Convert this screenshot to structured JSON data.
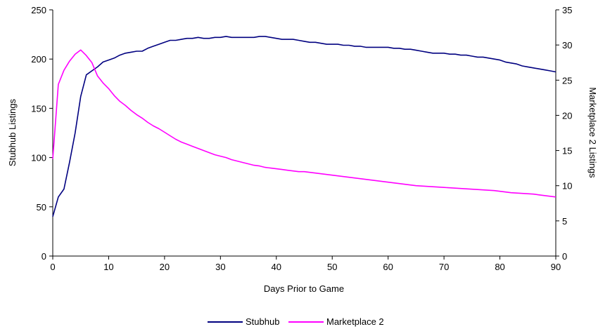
{
  "colors": {
    "stubhub": "#000080",
    "marketplace2": "#ff00ff"
  },
  "chart_data": {
    "type": "line",
    "xlabel": "Days Prior to Game",
    "ylabel_left": "Stubhub Listings",
    "ylabel_right": "Marketplace 2 Listings",
    "xlim": [
      0,
      90
    ],
    "ylim_left": [
      0,
      250
    ],
    "ylim_right": [
      0,
      35
    ],
    "x_ticks": [
      0,
      10,
      20,
      30,
      40,
      50,
      60,
      70,
      80,
      90
    ],
    "y_ticks_left": [
      0,
      50,
      100,
      150,
      200,
      250
    ],
    "y_ticks_right": [
      0,
      5,
      10,
      15,
      20,
      25,
      30,
      35
    ],
    "grid": false,
    "legend": "bottom",
    "series": [
      {
        "name": "Stubhub",
        "axis": "left",
        "color": "#000080",
        "x": [
          0,
          1,
          2,
          3,
          4,
          5,
          6,
          7,
          8,
          9,
          10,
          11,
          12,
          13,
          14,
          15,
          16,
          17,
          18,
          19,
          20,
          21,
          22,
          23,
          24,
          25,
          26,
          27,
          28,
          29,
          30,
          31,
          32,
          33,
          34,
          35,
          36,
          37,
          38,
          39,
          40,
          41,
          42,
          43,
          44,
          45,
          46,
          47,
          48,
          49,
          50,
          51,
          52,
          53,
          54,
          55,
          56,
          57,
          58,
          59,
          60,
          61,
          62,
          63,
          64,
          65,
          66,
          67,
          68,
          69,
          70,
          71,
          72,
          73,
          74,
          75,
          76,
          77,
          78,
          79,
          80,
          81,
          82,
          83,
          84,
          85,
          86,
          87,
          88,
          89,
          90
        ],
        "y": [
          40,
          60,
          68,
          95,
          125,
          162,
          184,
          188,
          192,
          197,
          199,
          201,
          204,
          206,
          207,
          208,
          208,
          211,
          213,
          215,
          217,
          219,
          219,
          220,
          221,
          221,
          222,
          221,
          221,
          222,
          222,
          223,
          222,
          222,
          222,
          222,
          222,
          223,
          223,
          222,
          221,
          220,
          220,
          220,
          219,
          218,
          217,
          217,
          216,
          215,
          215,
          215,
          214,
          214,
          213,
          213,
          212,
          212,
          212,
          212,
          212,
          211,
          211,
          210,
          210,
          209,
          208,
          207,
          206,
          206,
          206,
          205,
          205,
          204,
          204,
          203,
          202,
          202,
          201,
          200,
          199,
          197,
          196,
          195,
          193,
          192,
          191,
          190,
          189,
          188,
          187
        ]
      },
      {
        "name": "Marketplace 2",
        "axis": "right",
        "color": "#ff00ff",
        "x": [
          0,
          1,
          2,
          3,
          4,
          5,
          6,
          7,
          8,
          9,
          10,
          11,
          12,
          13,
          14,
          15,
          16,
          17,
          18,
          19,
          20,
          21,
          22,
          23,
          24,
          25,
          26,
          27,
          28,
          29,
          30,
          31,
          32,
          33,
          34,
          35,
          36,
          37,
          38,
          39,
          40,
          41,
          42,
          43,
          44,
          45,
          46,
          47,
          48,
          49,
          50,
          51,
          52,
          53,
          54,
          55,
          56,
          57,
          58,
          59,
          60,
          61,
          62,
          63,
          64,
          65,
          66,
          67,
          68,
          69,
          70,
          71,
          72,
          73,
          74,
          75,
          76,
          77,
          78,
          79,
          80,
          81,
          82,
          83,
          84,
          85,
          86,
          87,
          88,
          89,
          90
        ],
        "y": [
          13.8,
          24.4,
          26.4,
          27.7,
          28.7,
          29.3,
          28.5,
          27.5,
          25.6,
          24.6,
          23.8,
          22.8,
          22.0,
          21.4,
          20.7,
          20.1,
          19.6,
          19.0,
          18.5,
          18.1,
          17.6,
          17.1,
          16.6,
          16.2,
          15.9,
          15.6,
          15.3,
          15.0,
          14.7,
          14.4,
          14.2,
          14.0,
          13.7,
          13.5,
          13.3,
          13.1,
          12.9,
          12.8,
          12.6,
          12.5,
          12.4,
          12.3,
          12.2,
          12.1,
          12.0,
          12.0,
          11.9,
          11.8,
          11.7,
          11.6,
          11.5,
          11.4,
          11.3,
          11.2,
          11.1,
          11.0,
          10.9,
          10.8,
          10.7,
          10.6,
          10.5,
          10.4,
          10.3,
          10.2,
          10.1,
          10.0,
          9.95,
          9.9,
          9.85,
          9.8,
          9.75,
          9.7,
          9.65,
          9.6,
          9.55,
          9.5,
          9.45,
          9.4,
          9.35,
          9.3,
          9.2,
          9.1,
          9.0,
          8.95,
          8.9,
          8.85,
          8.8,
          8.7,
          8.6,
          8.5,
          8.4
        ]
      }
    ]
  }
}
